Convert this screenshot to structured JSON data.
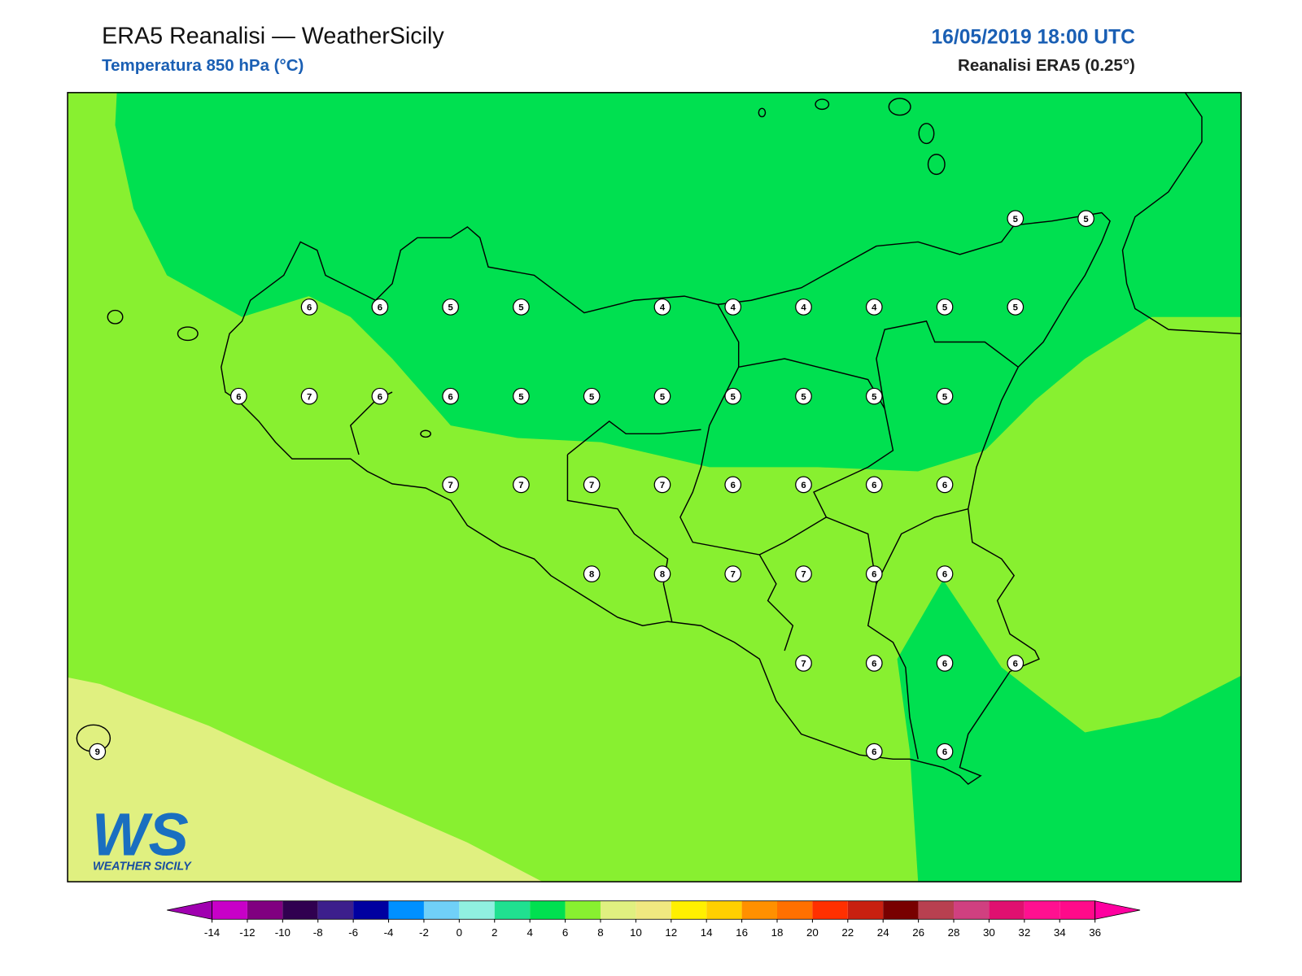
{
  "header": {
    "title": "ERA5 Reanalisi — WeatherSicily",
    "subtitle": "Temperatura 850 hPa (°C)",
    "datetime": "16/05/2019 18:00 UTC",
    "source": "Reanalisi ERA5 (0.25°)"
  },
  "stations": {
    "values": [
      5,
      5,
      6,
      6,
      5,
      5,
      4,
      4,
      4,
      4,
      5,
      5,
      6,
      7,
      6,
      6,
      5,
      5,
      5,
      5,
      5,
      5,
      5,
      7,
      7,
      7,
      7,
      6,
      6,
      6,
      6,
      8,
      8,
      7,
      7,
      6,
      6,
      7,
      6,
      6,
      6,
      9,
      6,
      6
    ]
  },
  "colorbar": {
    "ticks": [
      -14,
      -12,
      -10,
      -8,
      -6,
      -4,
      -2,
      0,
      2,
      4,
      6,
      8,
      10,
      12,
      14,
      16,
      18,
      20,
      22,
      24,
      26,
      28,
      30,
      32,
      34,
      36
    ],
    "colors": [
      "#a000b0",
      "#c800c8",
      "#800080",
      "#300050",
      "#3c1f8c",
      "#0000a0",
      "#0090ff",
      "#70d0f8",
      "#90f0e0",
      "#20e090",
      "#00e050",
      "#88f030",
      "#e0f080",
      "#f0e880",
      "#fff000",
      "#ffd000",
      "#ff9000",
      "#ff7000",
      "#ff3000",
      "#c82010",
      "#780000",
      "#b84050",
      "#d04080",
      "#e01070",
      "#ff1090",
      "#ff0a8a",
      "#ff00a0"
    ]
  },
  "logo": {
    "mark": "WS",
    "text": "WEATHER SICILY"
  }
}
